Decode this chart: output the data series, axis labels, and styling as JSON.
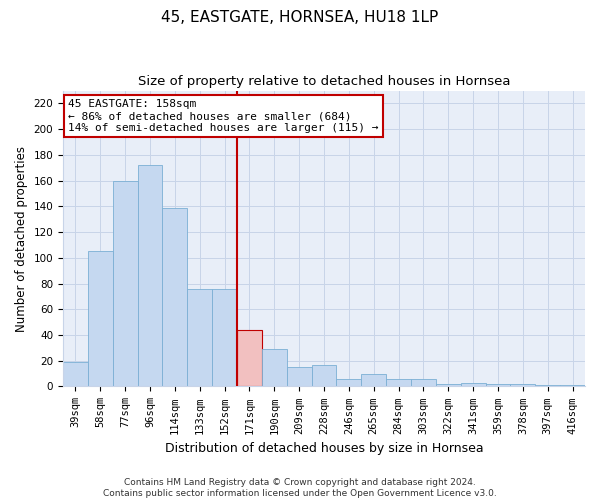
{
  "title": "45, EASTGATE, HORNSEA, HU18 1LP",
  "subtitle": "Size of property relative to detached houses in Hornsea",
  "xlabel": "Distribution of detached houses by size in Hornsea",
  "ylabel": "Number of detached properties",
  "categories": [
    "39sqm",
    "58sqm",
    "77sqm",
    "96sqm",
    "114sqm",
    "133sqm",
    "152sqm",
    "171sqm",
    "190sqm",
    "209sqm",
    "228sqm",
    "246sqm",
    "265sqm",
    "284sqm",
    "303sqm",
    "322sqm",
    "341sqm",
    "359sqm",
    "378sqm",
    "397sqm",
    "416sqm"
  ],
  "values": [
    19,
    105,
    160,
    172,
    139,
    76,
    76,
    44,
    29,
    15,
    17,
    6,
    10,
    6,
    6,
    2,
    3,
    2,
    2,
    1,
    1
  ],
  "bar_color": "#c5d8f0",
  "bar_edge_color": "#7bafd4",
  "highlight_index": 7,
  "highlight_color_bar": "#f2c0c0",
  "highlight_edge_color": "#c00000",
  "vline_x": 6.5,
  "vline_color": "#c00000",
  "annotation_text": "45 EASTGATE: 158sqm\n← 86% of detached houses are smaller (684)\n14% of semi-detached houses are larger (115) →",
  "annotation_box_color": "white",
  "annotation_box_edge_color": "#c00000",
  "ylim": [
    0,
    230
  ],
  "yticks": [
    0,
    20,
    40,
    60,
    80,
    100,
    120,
    140,
    160,
    180,
    200,
    220
  ],
  "grid_color": "#c8d4e8",
  "background_color": "#e8eef8",
  "footer_text": "Contains HM Land Registry data © Crown copyright and database right 2024.\nContains public sector information licensed under the Open Government Licence v3.0.",
  "title_fontsize": 11,
  "subtitle_fontsize": 9.5,
  "xlabel_fontsize": 9,
  "ylabel_fontsize": 8.5,
  "tick_fontsize": 7.5,
  "annotation_fontsize": 8,
  "footer_fontsize": 6.5
}
